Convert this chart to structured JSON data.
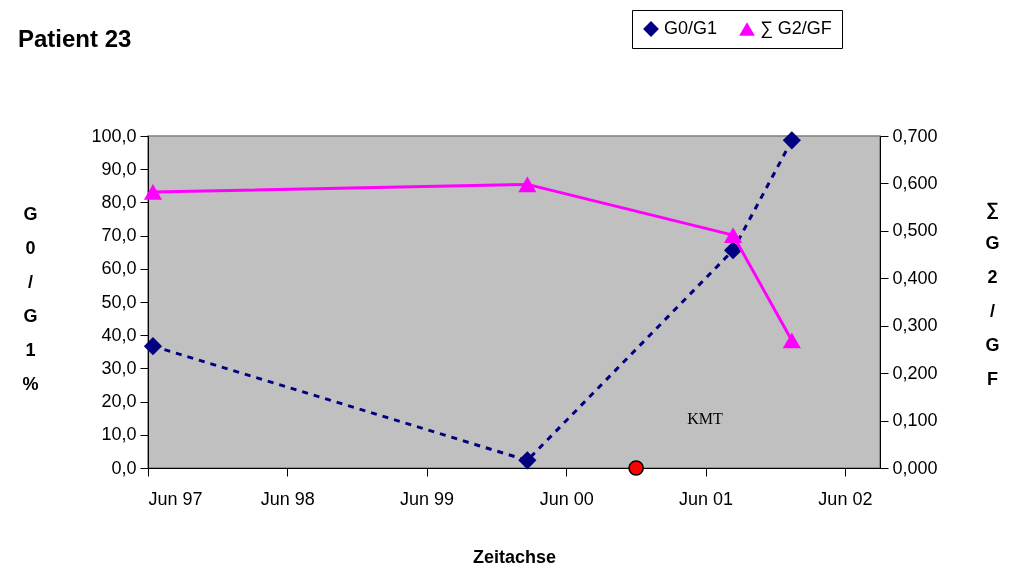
{
  "chart_data": {
    "type": "line",
    "title": "Patient 23",
    "xlabel": "Zeitachse",
    "ylabel": "G0/G1 %",
    "y2label": "∑ G2/GF",
    "x": [
      "1997-06-14",
      "2000-02-20",
      "2001-08-12",
      "2002-01-13"
    ],
    "series": [
      {
        "name": "G0/G1",
        "color": "#000080",
        "values": [
          36.7,
          2.3,
          65.6,
          98.7
        ],
        "marker": "diamond",
        "line_style": "dashed"
      },
      {
        "name": "∑ G2/GF",
        "color": "#ff00ff",
        "values": [
          0.582,
          0.598,
          0.491,
          0.269
        ],
        "marker": "triangle",
        "line_style": "solid",
        "axis": "y2"
      },
      {
        "type": "scatter",
        "color": "#ff0000",
        "x": [
          "2000-12-01"
        ],
        "values": [
          0
        ],
        "marker": "circle"
      }
    ],
    "xlim": [
      "1997-06",
      "2002-09"
    ],
    "xticks": [
      {
        "value": "1997-06",
        "label": "Jun 97"
      },
      {
        "value": "1998-06",
        "label": "Jun 98"
      },
      {
        "value": "1999-06",
        "label": "Jun 99"
      },
      {
        "value": "2000-06",
        "label": "Jun 00"
      },
      {
        "value": "2001-06",
        "label": "Jun 01"
      },
      {
        "value": "2002-06",
        "label": "Jun 02"
      }
    ],
    "ylim": [
      0,
      100
    ],
    "yticks": [
      {
        "value": 0,
        "label": "0,0"
      },
      {
        "value": 10,
        "label": "10,0"
      },
      {
        "value": 20,
        "label": "20,0"
      },
      {
        "value": 30,
        "label": "30,0"
      },
      {
        "value": 40,
        "label": "40,0"
      },
      {
        "value": 50,
        "label": "50,0"
      },
      {
        "value": 60,
        "label": "60,0"
      },
      {
        "value": 70,
        "label": "70,0"
      },
      {
        "value": 80,
        "label": "80,0"
      },
      {
        "value": 90,
        "label": "90,0"
      },
      {
        "value": 100,
        "label": "100,0"
      }
    ],
    "y2lim": [
      0,
      0.7
    ],
    "y2ticks": [
      {
        "value": 0,
        "label": "0,000"
      },
      {
        "value": 0.1,
        "label": "0,100"
      },
      {
        "value": 0.2,
        "label": "0,200"
      },
      {
        "value": 0.3,
        "label": "0,300"
      },
      {
        "value": 0.4,
        "label": "0,400"
      },
      {
        "value": 0.5,
        "label": "0,500"
      },
      {
        "value": 0.6,
        "label": "0,600"
      },
      {
        "value": 0.7,
        "label": "0,700"
      }
    ],
    "annotations": [
      "KMT"
    ],
    "legend": "top right",
    "grid": false
  }
}
